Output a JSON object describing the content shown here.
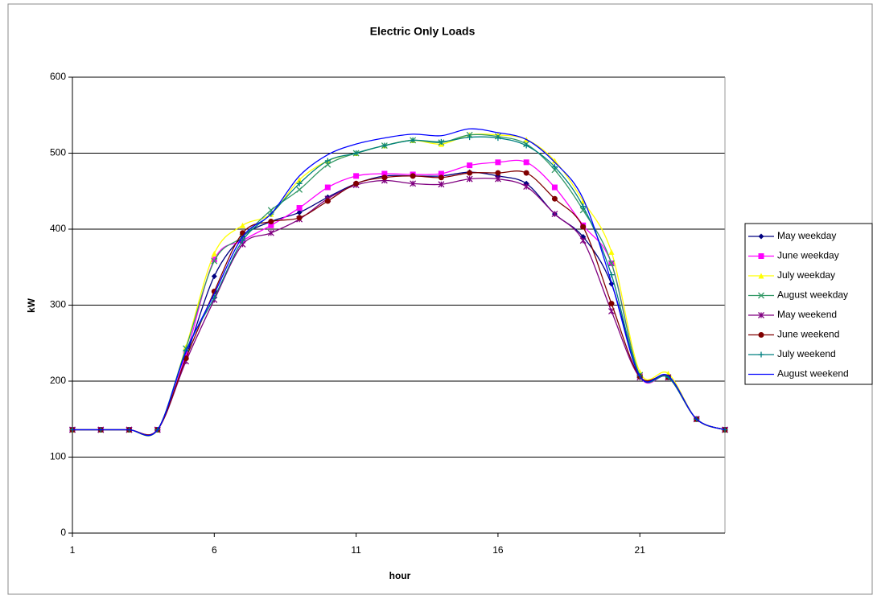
{
  "chart_data": {
    "type": "line",
    "title": "Electric Only Loads",
    "x_label": "hour",
    "y_label": "kW",
    "x": [
      1,
      2,
      3,
      4,
      5,
      6,
      7,
      8,
      9,
      10,
      11,
      12,
      13,
      14,
      15,
      16,
      17,
      18,
      19,
      20,
      21,
      22,
      23,
      24
    ],
    "xlim": [
      1,
      24
    ],
    "xticks": [
      1,
      6,
      11,
      16,
      21
    ],
    "ylim": [
      0,
      600
    ],
    "yticks": [
      0,
      100,
      200,
      300,
      400,
      500,
      600
    ],
    "grid": true,
    "legend": "right",
    "series": [
      {
        "name": "May weekday",
        "color": "#000080",
        "marker": "diamond",
        "values": [
          136,
          136,
          136,
          136,
          232,
          338,
          390,
          410,
          422,
          442,
          460,
          470,
          470,
          470,
          475,
          470,
          460,
          420,
          390,
          328,
          207,
          205,
          150,
          136
        ]
      },
      {
        "name": "June weekday",
        "color": "#ff00ff",
        "marker": "square",
        "values": [
          136,
          136,
          136,
          136,
          235,
          360,
          385,
          405,
          428,
          455,
          470,
          473,
          472,
          473,
          484,
          488,
          488,
          455,
          405,
          355,
          207,
          205,
          150,
          136
        ]
      },
      {
        "name": "July weekday",
        "color": "#ffff00",
        "marker": "triangle",
        "values": [
          136,
          136,
          136,
          136,
          245,
          368,
          405,
          420,
          465,
          490,
          500,
          510,
          517,
          512,
          524,
          524,
          518,
          490,
          437,
          370,
          212,
          210,
          150,
          136
        ]
      },
      {
        "name": "August weekday",
        "color": "#339966",
        "marker": "x",
        "values": [
          136,
          136,
          136,
          136,
          243,
          358,
          390,
          425,
          452,
          485,
          500,
          510,
          517,
          514,
          524,
          522,
          512,
          478,
          425,
          355,
          208,
          205,
          150,
          136
        ]
      },
      {
        "name": "May weekend",
        "color": "#800080",
        "marker": "star",
        "values": [
          136,
          136,
          136,
          136,
          226,
          307,
          380,
          395,
          413,
          440,
          458,
          464,
          460,
          459,
          466,
          466,
          456,
          420,
          385,
          292,
          205,
          205,
          150,
          136
        ]
      },
      {
        "name": "June weekend",
        "color": "#800000",
        "marker": "circle",
        "values": [
          136,
          136,
          136,
          136,
          230,
          318,
          395,
          410,
          415,
          437,
          460,
          468,
          470,
          468,
          474,
          474,
          474,
          440,
          403,
          302,
          206,
          205,
          150,
          136
        ]
      },
      {
        "name": "July weekend",
        "color": "#008080",
        "marker": "plus",
        "values": [
          136,
          136,
          136,
          136,
          240,
          310,
          385,
          420,
          460,
          490,
          500,
          510,
          517,
          515,
          521,
          520,
          510,
          482,
          430,
          340,
          207,
          205,
          150,
          136
        ]
      },
      {
        "name": "August weekend",
        "color": "#0000ff",
        "marker": "none",
        "values": [
          136,
          136,
          136,
          136,
          238,
          315,
          390,
          420,
          470,
          498,
          512,
          520,
          525,
          523,
          532,
          527,
          518,
          488,
          440,
          330,
          206,
          207,
          150,
          136
        ]
      }
    ]
  }
}
